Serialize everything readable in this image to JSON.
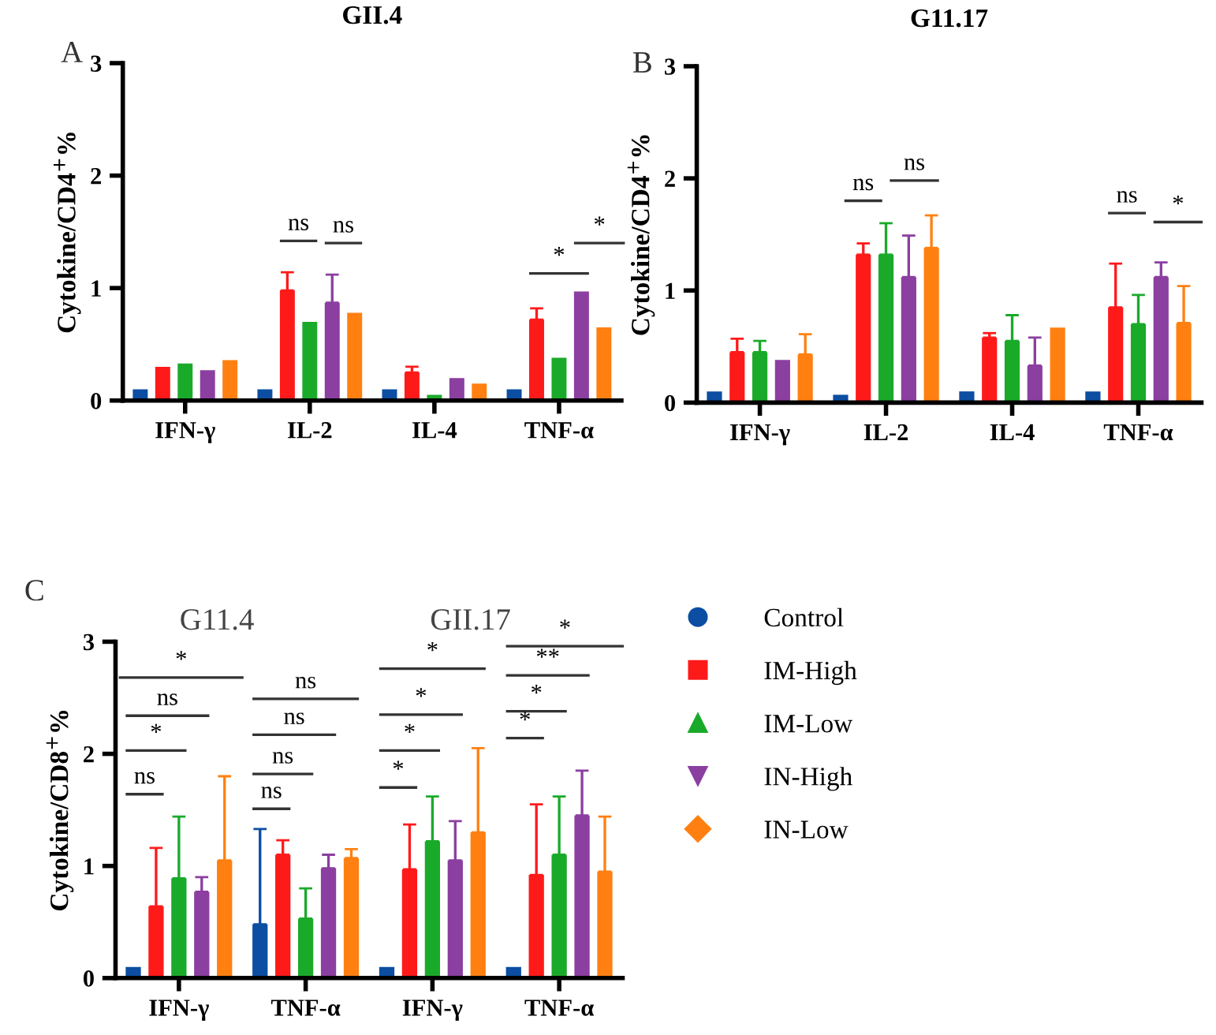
{
  "chart_data": [
    {
      "type": "bar",
      "title": "GII.4",
      "ylabel": "Cytokine/CD4$^{+}$%",
      "categories": [
        "IFN-γ",
        "IL-2",
        "IL-4",
        "TNF-α"
      ],
      "ylim": [
        0,
        3
      ],
      "yticks": [
        0,
        1,
        2,
        3
      ],
      "grid": false,
      "legend": false,
      "annotations": [
        "A",
        "ns",
        "ns",
        "*",
        "*"
      ],
      "series": [
        {
          "color": "#0b4ea2",
          "values": [
            0.1,
            0.1,
            0.1,
            0.1
          ]
        },
        {
          "color": "#ff1a1a",
          "values": [
            0.3,
            0.98,
            0.25,
            0.72
          ],
          "errors": [
            null,
            [
              0.98,
              1.14
            ],
            [
              0.25,
              0.3
            ],
            [
              0.72,
              0.82
            ]
          ]
        },
        {
          "color": "#1aaa2a",
          "values": [
            0.33,
            0.7,
            0.05,
            0.38
          ]
        },
        {
          "color": "#8b3fa0",
          "values": [
            0.27,
            0.87,
            0.2,
            0.97
          ],
          "errors": [
            null,
            [
              0.87,
              1.12
            ],
            null,
            null
          ]
        },
        {
          "color": "#ff8011",
          "values": [
            0.36,
            0.78,
            0.15,
            0.65
          ]
        }
      ]
    },
    {
      "type": "bar",
      "title": "G11.17",
      "ylabel": "Cytokine/CD4$^{+}$%",
      "categories": [
        "IFN-γ",
        "IL-2",
        "IL-4",
        "TNF-α"
      ],
      "ylim": [
        0,
        3
      ],
      "yticks": [
        0,
        1,
        2,
        3
      ],
      "grid": false,
      "legend": false,
      "annotations": [
        "B",
        "ns",
        "ns",
        "ns",
        "*"
      ],
      "series": [
        {
          "color": "#0b4ea2",
          "values": [
            0.1,
            0.07,
            0.1,
            0.1
          ]
        },
        {
          "color": "#ff1a1a",
          "values": [
            0.45,
            1.32,
            0.58,
            0.85
          ],
          "errors": [
            [
              0.45,
              0.57
            ],
            [
              1.32,
              1.42
            ],
            [
              0.58,
              0.62
            ],
            [
              0.85,
              1.24
            ]
          ]
        },
        {
          "color": "#1aaa2a",
          "values": [
            0.45,
            1.32,
            0.55,
            0.7
          ],
          "errors": [
            [
              0.45,
              0.55
            ],
            [
              1.32,
              1.6
            ],
            [
              0.55,
              0.78
            ],
            [
              0.7,
              0.96
            ]
          ]
        },
        {
          "color": "#8b3fa0",
          "values": [
            0.38,
            1.12,
            0.33,
            1.12
          ],
          "errors": [
            null,
            [
              1.12,
              1.49
            ],
            [
              0.33,
              0.58
            ],
            [
              1.12,
              1.25
            ]
          ]
        },
        {
          "color": "#ff8011",
          "values": [
            0.43,
            1.38,
            0.67,
            0.71
          ],
          "errors": [
            [
              0.43,
              0.61
            ],
            [
              1.38,
              1.67
            ],
            null,
            [
              0.71,
              1.04
            ]
          ]
        }
      ]
    },
    {
      "type": "bar",
      "ylabel": "Cytokine/CD8$^{+}$%",
      "categories": [
        "IFN-γ",
        "TNF-α",
        "IFN-γ",
        "TNF-α"
      ],
      "ylim": [
        0,
        3
      ],
      "yticks": [
        0,
        1,
        2,
        3
      ],
      "grid": false,
      "legend": "right",
      "annotations": [
        "C",
        "G11.4",
        "GII.17",
        "ns",
        "*",
        "ns",
        "*",
        "ns",
        "ns",
        "ns",
        "ns",
        "*",
        "*",
        "*",
        "*",
        "*",
        "*",
        "**",
        "*"
      ],
      "series": [
        {
          "name": "Control",
          "marker": "circle",
          "color": "#0b4ea2",
          "values": [
            0.1,
            0.48,
            0.1,
            0.1
          ],
          "errors": [
            null,
            [
              0.48,
              1.33
            ],
            null,
            null
          ]
        },
        {
          "name": "IM-High",
          "marker": "square",
          "color": "#ff1a1a",
          "values": [
            0.64,
            1.1,
            0.97,
            0.92
          ],
          "errors": [
            [
              0.64,
              1.16
            ],
            [
              1.1,
              1.23
            ],
            [
              0.97,
              1.37
            ],
            [
              0.92,
              1.55
            ]
          ]
        },
        {
          "name": "IM-Low",
          "marker": "triangle",
          "color": "#1aaa2a",
          "values": [
            0.89,
            0.53,
            1.22,
            1.1
          ],
          "errors": [
            [
              0.89,
              1.44
            ],
            [
              0.53,
              0.8
            ],
            [
              1.22,
              1.62
            ],
            [
              1.1,
              1.62
            ]
          ]
        },
        {
          "name": "IN-High",
          "marker": "triangle_down",
          "color": "#8b3fa0",
          "values": [
            0.77,
            0.98,
            1.05,
            1.45
          ],
          "errors": [
            [
              0.77,
              0.9
            ],
            [
              0.98,
              1.1
            ],
            [
              1.05,
              1.4
            ],
            [
              1.45,
              1.85
            ]
          ]
        },
        {
          "name": "IN-Low",
          "marker": "diamond",
          "color": "#ff8011",
          "values": [
            1.05,
            1.07,
            1.3,
            0.95
          ],
          "errors": [
            [
              1.05,
              1.8
            ],
            [
              1.07,
              1.15
            ],
            [
              1.3,
              2.05
            ],
            [
              0.95,
              1.44
            ]
          ]
        }
      ]
    }
  ]
}
